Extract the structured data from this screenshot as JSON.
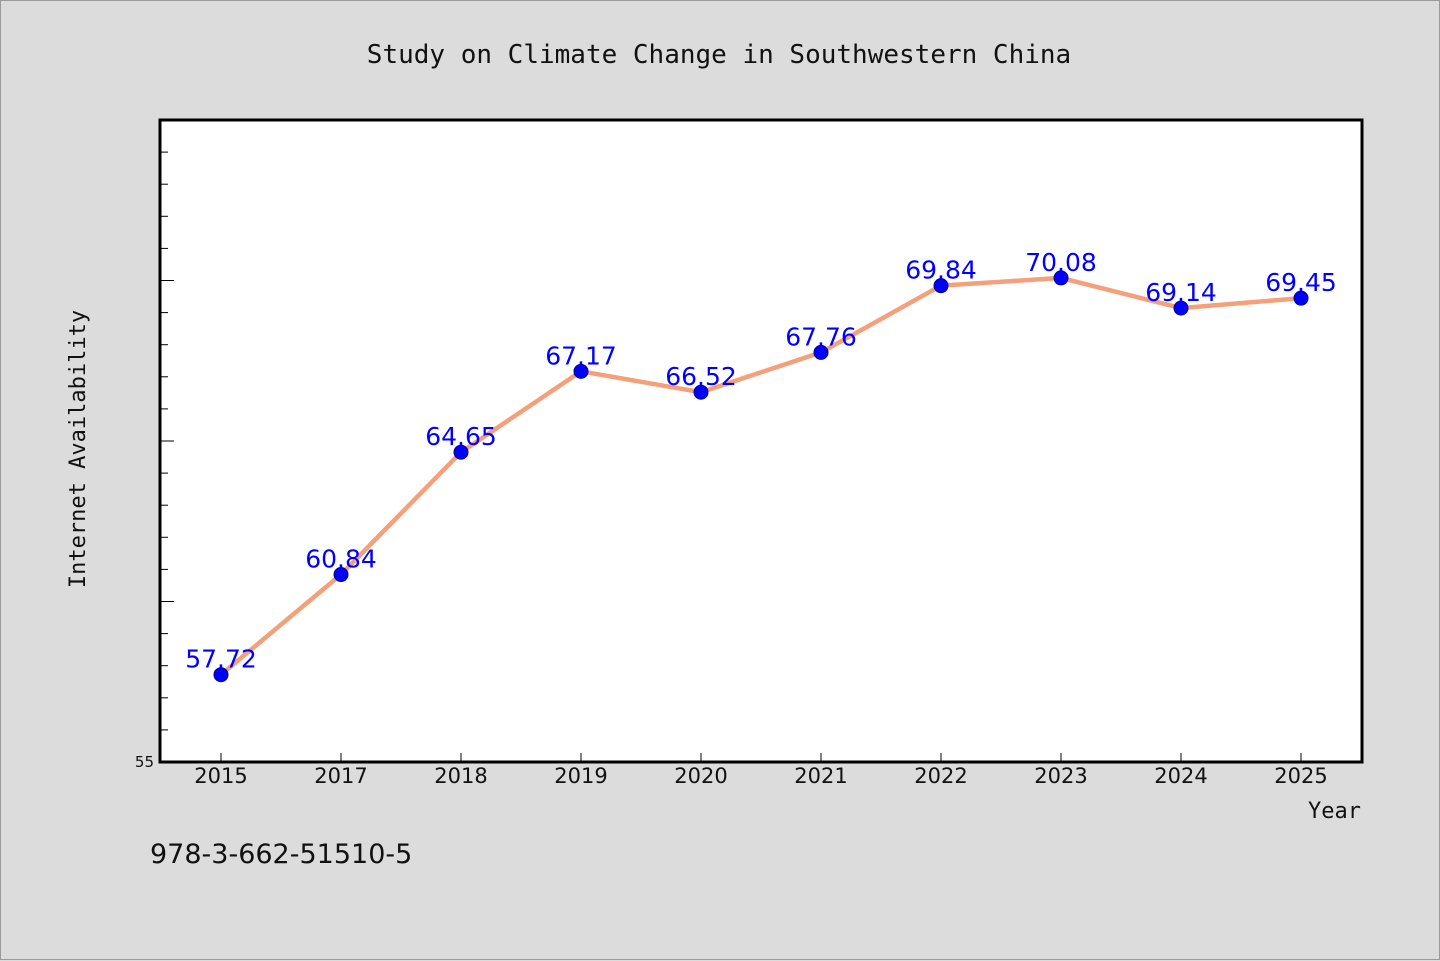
{
  "chart_data": {
    "type": "line",
    "title": "Study on Climate Change in Southwestern China",
    "xlabel": "Year",
    "ylabel": "Internet Availability",
    "categories": [
      "2015",
      "2017",
      "2018",
      "2019",
      "2020",
      "2021",
      "2022",
      "2023",
      "2024",
      "2025"
    ],
    "series": [
      {
        "values": [
          57.72,
          60.84,
          64.65,
          67.17,
          66.52,
          67.76,
          69.84,
          70.08,
          69.14,
          69.45
        ],
        "labels": [
          "57.72",
          "60.84",
          "64.65",
          "67.17",
          "66.52",
          "67.76",
          "69.84",
          "70.08",
          "69.14",
          "69.45"
        ],
        "line_color": "#f4a07a",
        "marker_color": "#0000ff"
      }
    ],
    "ylim": [
      55,
      75
    ],
    "yticks_labeled": [
      "55"
    ],
    "grid": false,
    "legend": "none"
  },
  "footnote": "978-3-662-51510-5"
}
